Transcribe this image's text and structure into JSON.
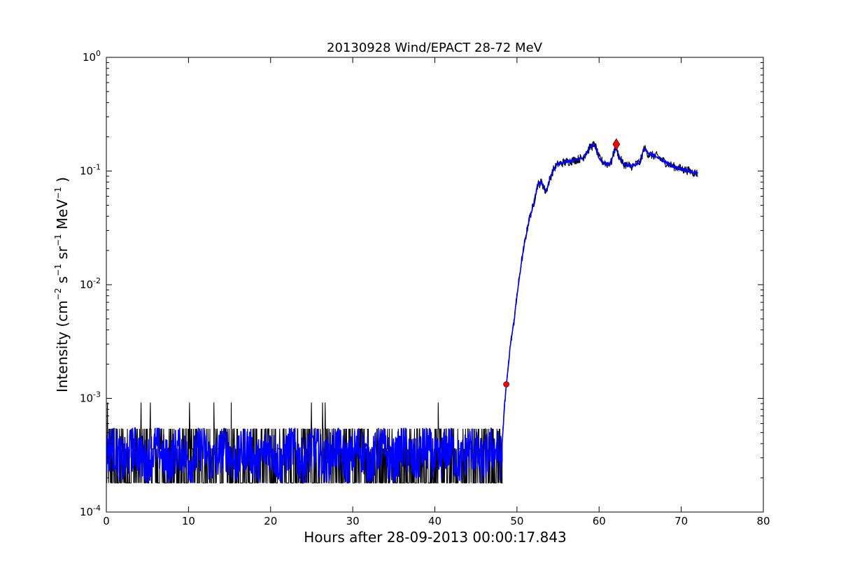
{
  "chart_data": {
    "type": "line",
    "title": "20130928 Wind/EPACT 28-72 MeV",
    "xlabel": "Hours after 28-09-2013 00:00:17.843",
    "ylabel_parts": [
      "Intensity (cm",
      "−2",
      " s",
      "−1",
      " sr",
      "−1",
      " MeV",
      "−1",
      " )"
    ],
    "xlim": [
      0,
      80
    ],
    "ylim": [
      0.0001,
      1
    ],
    "yscale": "log",
    "grid": false,
    "x_ticks": [
      0,
      10,
      20,
      30,
      40,
      50,
      60,
      70,
      80
    ],
    "x_tick_labels": [
      "0",
      "10",
      "20",
      "30",
      "40",
      "50",
      "60",
      "70",
      "80"
    ],
    "y_ticks": [
      {
        "value": 1,
        "base": "10",
        "exp": "0"
      },
      {
        "value": 0.1,
        "base": "10",
        "exp": "-1"
      },
      {
        "value": 0.01,
        "base": "10",
        "exp": "-2"
      },
      {
        "value": 0.001,
        "base": "10",
        "exp": "-3"
      },
      {
        "value": 0.0001,
        "base": "10",
        "exp": "-4"
      }
    ],
    "series": [
      {
        "color": "#000000",
        "style": "raw",
        "baseline_levels": [
          0.00018,
          0.00036,
          0.00054
        ],
        "spike_level": 0.00092,
        "baseline_end_x": 48.2,
        "x": [
          48.2,
          48.5,
          48.8,
          49.2,
          49.6,
          50.0,
          50.5,
          51.0,
          51.5,
          52.0,
          52.5,
          53.0,
          53.5,
          54.0,
          54.5,
          55.0,
          56.0,
          57.0,
          58.0,
          59.0,
          59.5,
          60.0,
          60.5,
          61.0,
          61.5,
          62.0,
          62.5,
          63.0,
          64.0,
          65.0,
          65.5,
          66.0,
          67.0,
          68.0,
          69.0,
          70.0,
          71.0,
          72.0
        ],
        "y": [
          0.0004,
          0.0009,
          0.0015,
          0.003,
          0.0045,
          0.008,
          0.015,
          0.025,
          0.038,
          0.05,
          0.075,
          0.08,
          0.065,
          0.085,
          0.105,
          0.115,
          0.12,
          0.125,
          0.13,
          0.165,
          0.17,
          0.13,
          0.12,
          0.115,
          0.12,
          0.165,
          0.13,
          0.115,
          0.11,
          0.12,
          0.16,
          0.14,
          0.135,
          0.12,
          0.11,
          0.105,
          0.1,
          0.095
        ]
      },
      {
        "color": "#0000ff",
        "style": "smoothed",
        "baseline_range": [
          0.00018,
          0.00055
        ],
        "baseline_end_x": 48.2,
        "x": [
          48.2,
          48.5,
          48.8,
          49.2,
          49.6,
          50.0,
          50.5,
          51.0,
          51.5,
          52.0,
          52.5,
          53.0,
          53.5,
          54.0,
          54.5,
          55.0,
          56.0,
          57.0,
          58.0,
          59.0,
          59.5,
          60.0,
          60.5,
          61.0,
          61.5,
          62.0,
          62.5,
          63.0,
          64.0,
          65.0,
          65.5,
          66.0,
          67.0,
          68.0,
          69.0,
          70.0,
          71.0,
          72.0
        ],
        "y": [
          0.0004,
          0.0009,
          0.0015,
          0.003,
          0.0045,
          0.008,
          0.015,
          0.025,
          0.038,
          0.05,
          0.075,
          0.08,
          0.065,
          0.085,
          0.105,
          0.115,
          0.12,
          0.125,
          0.13,
          0.165,
          0.17,
          0.13,
          0.12,
          0.115,
          0.12,
          0.165,
          0.13,
          0.115,
          0.11,
          0.12,
          0.16,
          0.14,
          0.135,
          0.12,
          0.11,
          0.105,
          0.1,
          0.095
        ]
      }
    ],
    "markers": [
      {
        "shape": "circle",
        "color": "#ff0000",
        "x": 48.7,
        "y": 0.00133
      },
      {
        "shape": "diamond",
        "color": "#ff0000",
        "x": 62.1,
        "y": 0.172
      }
    ]
  }
}
